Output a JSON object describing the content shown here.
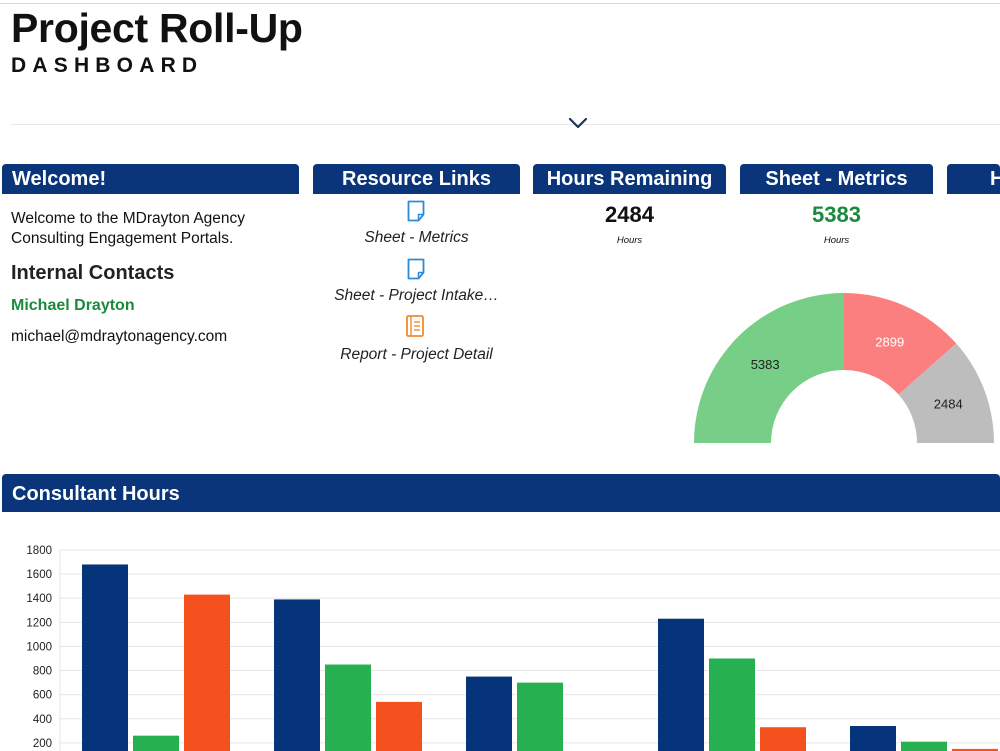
{
  "header": {
    "title": "Project Roll-Up",
    "subtitle": "DASHBOARD"
  },
  "icons": {
    "collapse": "chevron-down-icon",
    "sheet": "sheet-document-icon",
    "report": "report-notebook-icon"
  },
  "colors": {
    "header_bg": "#0a357a",
    "accent_green": "#1b8a3e",
    "bar_blue": "#06347a",
    "bar_green": "#27b050",
    "bar_orange": "#f4511e",
    "gauge_green": "#77cf87",
    "gauge_red": "#fc7f7f",
    "gauge_gray": "#bdbdbd"
  },
  "welcome": {
    "header": "Welcome!",
    "text": "Welcome to the MDrayton Agency Consulting Engagement Portals.",
    "contacts_title": "Internal Contacts",
    "contact_name": "Michael Drayton",
    "contact_email": "michael@mdraytonagency.com"
  },
  "resources": {
    "header": "Resource Links",
    "links": [
      {
        "label": "Sheet - Metrics",
        "icon": "sheet-document-icon"
      },
      {
        "label": "Sheet - Project Intake…",
        "icon": "sheet-document-icon"
      },
      {
        "label": "Report - Project Detail",
        "icon": "report-notebook-icon"
      }
    ]
  },
  "hours_remaining": {
    "header": "Hours Remaining",
    "value": "2484",
    "unit": "Hours"
  },
  "sheet_metrics": {
    "header": "Sheet - Metrics",
    "value": "5383",
    "unit": "Hours"
  },
  "cut_panel": {
    "header": "H"
  },
  "gauge_data": {
    "type": "semi-donut",
    "values": [
      5383,
      2899,
      2484
    ],
    "labels": [
      "5383",
      "2899",
      "2484"
    ]
  },
  "consultant_hours": {
    "header": "Consultant Hours"
  },
  "chart_data": {
    "type": "bar",
    "title": "",
    "xlabel": "",
    "ylabel": "",
    "ylim": [
      0,
      1800
    ],
    "yticks": [
      200,
      400,
      600,
      800,
      1000,
      1200,
      1400,
      1600,
      1800
    ],
    "categories": [
      "",
      "",
      "",
      "",
      ""
    ],
    "series": [
      {
        "values": [
          1680,
          1390,
          750,
          1230,
          340
        ]
      },
      {
        "values": [
          260,
          850,
          700,
          900,
          210
        ]
      },
      {
        "values": [
          1430,
          540,
          0,
          330,
          150
        ]
      }
    ],
    "grid": true,
    "legend": "none"
  }
}
